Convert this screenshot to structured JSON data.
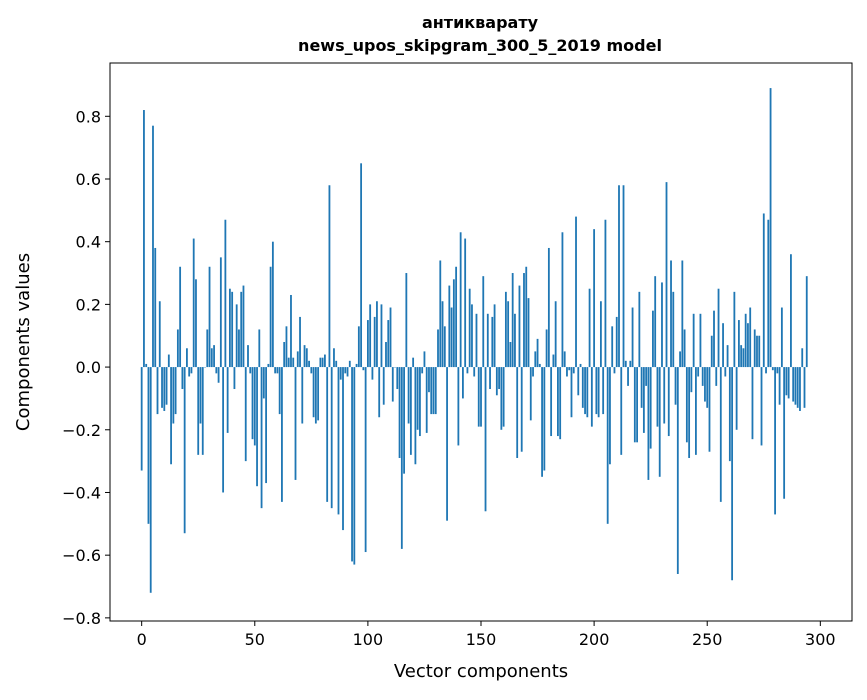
{
  "chart_data": {
    "type": "bar",
    "title_lines": [
      "антикварату",
      "news_upos_skipgram_300_5_2019 model"
    ],
    "xlabel": "Vector components",
    "ylabel": "Components values",
    "xlim": [
      -14,
      314
    ],
    "ylim": [
      -0.81,
      0.97
    ],
    "xticks": [
      0,
      50,
      100,
      150,
      200,
      250,
      300
    ],
    "yticks": [
      -0.8,
      -0.6,
      -0.4,
      -0.2,
      0.0,
      0.2,
      0.4,
      0.6,
      0.8
    ],
    "ytick_labels": [
      "−0.8",
      "−0.6",
      "−0.4",
      "−0.2",
      "0.0",
      "0.2",
      "0.4",
      "0.6",
      "0.8"
    ],
    "bar_color": "#1f77b4",
    "grid": false,
    "values": [
      -0.33,
      0.82,
      0.01,
      -0.5,
      -0.72,
      0.77,
      0.38,
      -0.15,
      0.21,
      -0.13,
      -0.14,
      -0.12,
      0.04,
      -0.31,
      -0.18,
      -0.15,
      0.12,
      0.32,
      -0.07,
      -0.53,
      0.06,
      -0.03,
      -0.02,
      0.41,
      0.28,
      -0.28,
      -0.18,
      -0.28,
      0.0,
      0.12,
      0.32,
      0.06,
      0.07,
      -0.02,
      -0.05,
      0.35,
      -0.4,
      0.47,
      -0.21,
      0.25,
      0.24,
      -0.07,
      0.2,
      0.12,
      0.24,
      0.26,
      -0.3,
      0.07,
      -0.02,
      -0.23,
      -0.25,
      -0.38,
      0.12,
      -0.45,
      -0.1,
      -0.37,
      0.01,
      0.32,
      0.4,
      -0.02,
      -0.02,
      -0.15,
      -0.43,
      0.08,
      0.13,
      0.03,
      0.23,
      0.03,
      -0.36,
      0.05,
      0.16,
      -0.18,
      0.07,
      0.06,
      0.02,
      -0.02,
      -0.16,
      -0.18,
      -0.17,
      0.03,
      0.03,
      0.04,
      -0.43,
      0.58,
      -0.45,
      0.06,
      0.02,
      -0.47,
      -0.04,
      -0.52,
      -0.02,
      -0.03,
      0.02,
      -0.62,
      -0.63,
      0.01,
      0.13,
      0.65,
      -0.01,
      -0.59,
      0.15,
      0.2,
      -0.04,
      0.16,
      0.21,
      -0.16,
      0.2,
      -0.12,
      0.08,
      0.15,
      0.19,
      -0.11,
      0.0,
      -0.07,
      -0.29,
      -0.58,
      -0.34,
      0.3,
      -0.18,
      -0.28,
      0.03,
      -0.31,
      -0.2,
      -0.22,
      -0.02,
      0.05,
      -0.21,
      -0.08,
      -0.15,
      -0.15,
      -0.15,
      0.12,
      0.34,
      0.21,
      0.13,
      -0.49,
      0.26,
      0.19,
      0.28,
      0.32,
      -0.25,
      0.43,
      -0.1,
      0.41,
      -0.02,
      0.25,
      0.2,
      -0.03,
      0.17,
      -0.19,
      -0.19,
      0.29,
      -0.46,
      0.17,
      -0.07,
      0.16,
      0.2,
      -0.09,
      -0.07,
      -0.2,
      -0.19,
      0.24,
      0.21,
      0.08,
      0.3,
      0.17,
      -0.29,
      0.26,
      -0.27,
      0.3,
      0.32,
      0.22,
      -0.17,
      -0.03,
      0.05,
      0.09,
      0.01,
      -0.35,
      -0.33,
      0.12,
      0.38,
      -0.22,
      0.04,
      0.21,
      -0.22,
      -0.23,
      0.43,
      0.05,
      -0.03,
      -0.01,
      -0.16,
      -0.02,
      0.48,
      -0.09,
      0.01,
      -0.13,
      -0.15,
      -0.16,
      0.25,
      -0.19,
      0.44,
      -0.15,
      -0.16,
      0.21,
      -0.15,
      0.47,
      -0.5,
      -0.31,
      0.13,
      -0.02,
      0.16,
      0.58,
      -0.28,
      0.58,
      0.02,
      -0.06,
      0.02,
      0.19,
      -0.24,
      -0.24,
      0.24,
      -0.13,
      -0.21,
      -0.06,
      -0.36,
      -0.26,
      0.18,
      0.29,
      -0.19,
      -0.35,
      0.27,
      -0.18,
      0.59,
      -0.22,
      0.34,
      0.24,
      -0.12,
      -0.66,
      0.05,
      0.34,
      0.12,
      -0.24,
      -0.29,
      -0.08,
      0.17,
      -0.28,
      -0.03,
      0.17,
      -0.06,
      -0.11,
      -0.13,
      -0.27,
      0.1,
      0.18,
      -0.06,
      0.25,
      -0.43,
      0.14,
      -0.03,
      0.07,
      -0.3,
      -0.68,
      0.24,
      -0.2,
      0.15,
      0.07,
      0.06,
      0.17,
      0.14,
      0.19,
      -0.23,
      0.12,
      0.1,
      0.1,
      -0.25,
      0.49,
      -0.02,
      0.47,
      0.89,
      -0.01,
      -0.47,
      -0.02,
      -0.12,
      0.19,
      -0.42,
      -0.09,
      -0.1,
      0.36,
      -0.11,
      -0.12,
      -0.13,
      -0.14,
      0.06,
      -0.13,
      0.29
    ]
  }
}
